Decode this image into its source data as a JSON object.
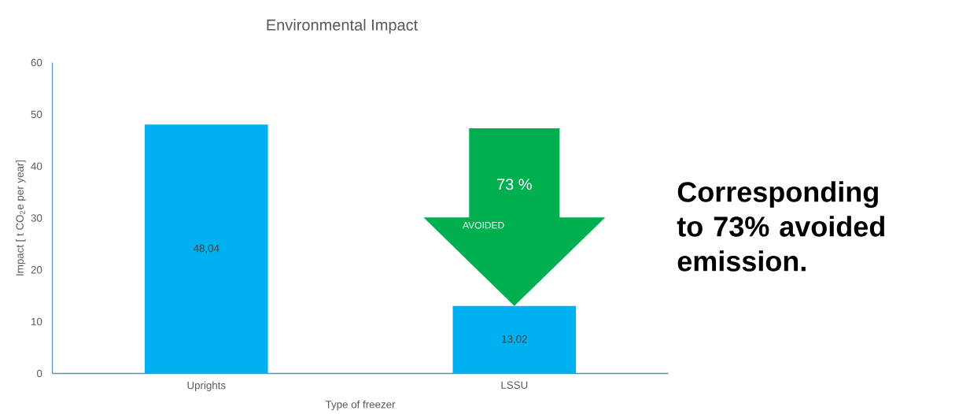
{
  "chart_data": {
    "type": "bar",
    "title": "Environmental Impact",
    "xlabel": "Type of freezer",
    "ylabel": "Impact [ t CO$_{2}$e per year]",
    "categories": [
      "Uprights",
      "LSSU"
    ],
    "values": [
      48.04,
      13.02
    ],
    "value_labels": [
      "48,04",
      "13,02"
    ],
    "color": "#00b0f0",
    "ylim": [
      0,
      60
    ],
    "yticks": [
      0,
      10,
      20,
      30,
      40,
      50,
      60
    ],
    "annotations": [
      "73 %",
      "AVOIDED",
      "Corresponding to 73% avoided emission."
    ]
  }
}
